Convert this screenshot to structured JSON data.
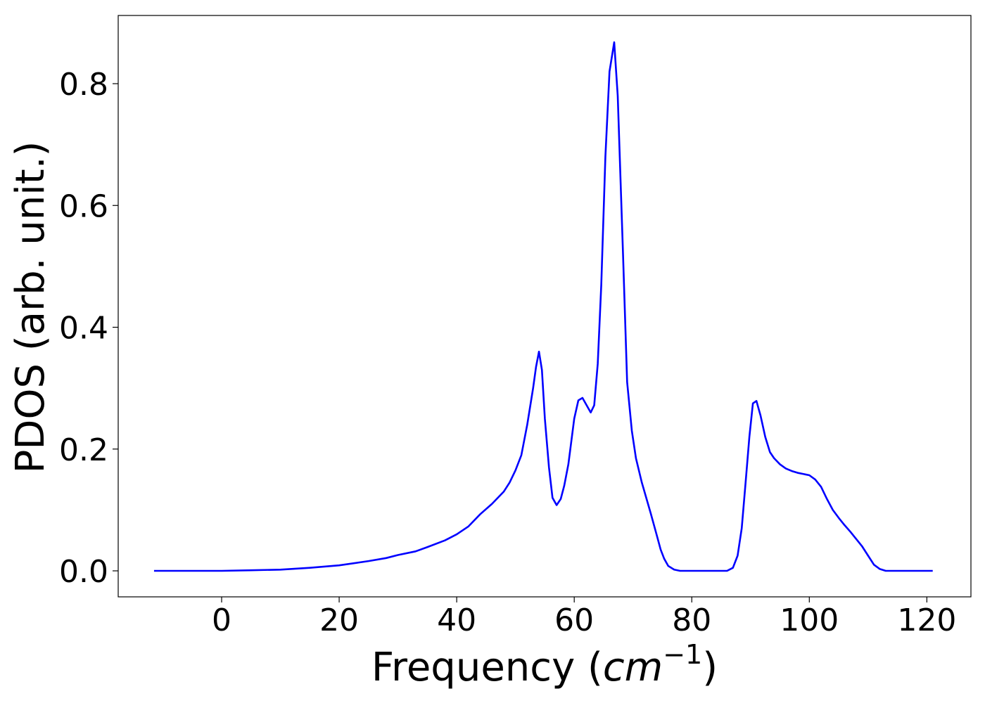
{
  "chart_data": {
    "type": "line",
    "xlabel_parts": [
      "Frequency (",
      "cm",
      "−1",
      ")"
    ],
    "ylabel": "PDOS (arb. unit.)",
    "xlim": [
      -17.6,
      127.5
    ],
    "ylim": [
      -0.0427,
      0.912
    ],
    "xticks": [
      0,
      20,
      40,
      60,
      80,
      100,
      120
    ],
    "yticks": [
      {
        "value": 0,
        "label": "0.0"
      },
      0.2,
      0.4,
      0.6,
      0.8
    ],
    "grid": false,
    "x": [
      -11.5,
      0,
      5,
      10,
      15,
      20,
      25,
      28,
      30,
      33,
      35,
      38,
      40,
      42,
      44,
      46,
      48,
      49,
      50,
      51,
      52,
      53,
      53.5,
      54,
      54.5,
      55,
      55.7,
      56.3,
      57,
      57.7,
      58.3,
      59,
      60,
      60.7,
      61.4,
      62.8,
      63.4,
      64,
      64.6,
      65.3,
      66,
      66.8,
      67.4,
      68.3,
      69,
      69.8,
      70.5,
      71.5,
      73,
      74,
      74.7,
      75.3,
      76,
      77,
      78,
      86,
      87,
      87.8,
      88.5,
      89.2,
      89.8,
      90.4,
      91,
      91.7,
      92.5,
      93.3,
      94,
      95,
      96,
      97,
      98,
      99,
      100,
      101,
      102,
      103,
      104,
      105,
      106,
      107,
      108,
      109,
      110,
      111,
      112,
      113,
      121
    ],
    "series": [
      {
        "color": "#0000ff",
        "values": [
          0,
          0,
          0.001,
          0.002,
          0.005,
          0.009,
          0.016,
          0.021,
          0.026,
          0.032,
          0.039,
          0.05,
          0.06,
          0.073,
          0.093,
          0.11,
          0.13,
          0.145,
          0.165,
          0.19,
          0.24,
          0.3,
          0.335,
          0.36,
          0.33,
          0.25,
          0.17,
          0.12,
          0.108,
          0.118,
          0.14,
          0.175,
          0.25,
          0.28,
          0.284,
          0.26,
          0.272,
          0.34,
          0.47,
          0.68,
          0.82,
          0.868,
          0.78,
          0.52,
          0.31,
          0.23,
          0.185,
          0.145,
          0.095,
          0.06,
          0.035,
          0.02,
          0.008,
          0.002,
          0,
          0,
          0.005,
          0.025,
          0.07,
          0.15,
          0.22,
          0.275,
          0.279,
          0.255,
          0.22,
          0.195,
          0.185,
          0.175,
          0.168,
          0.164,
          0.161,
          0.159,
          0.157,
          0.15,
          0.138,
          0.118,
          0.1,
          0.087,
          0.075,
          0.064,
          0.052,
          0.04,
          0.025,
          0.01,
          0.003,
          0,
          0
        ]
      }
    ]
  }
}
